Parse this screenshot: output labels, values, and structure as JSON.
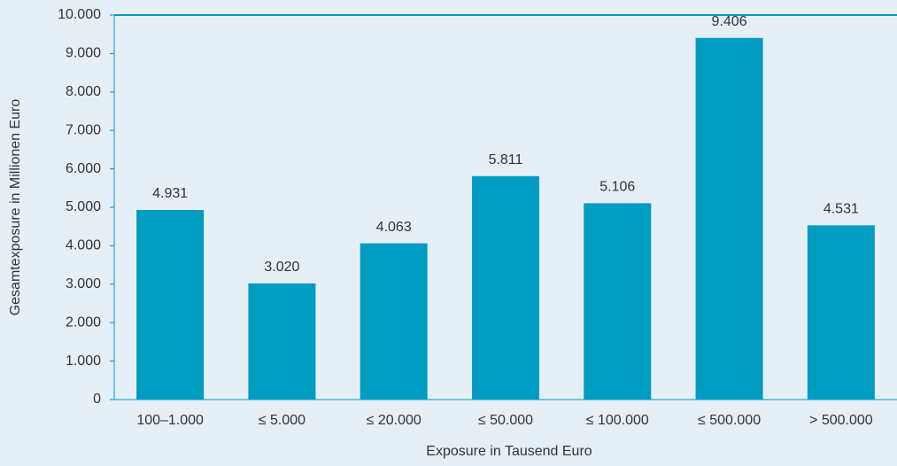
{
  "chart_data": {
    "type": "bar",
    "xlabel": "Exposure in Tausend Euro",
    "ylabel": "Gesamtexposure in Millionen Euro",
    "categories": [
      "100–1.000",
      "≤ 5.000",
      "≤ 20.000",
      "≤ 50.000",
      "≤ 100.000",
      "≤ 500.000",
      "> 500.000"
    ],
    "values": [
      4931,
      3020,
      4063,
      5811,
      5106,
      9406,
      4531
    ],
    "value_labels": [
      "4.931",
      "3.020",
      "4.063",
      "5.811",
      "5.106",
      "9.406",
      "4.531"
    ],
    "color": "#009cc1",
    "ylim": [
      0,
      10000
    ],
    "yticks": [
      0,
      {
        "value": 1000,
        "label": "1.000"
      },
      {
        "value": 2000,
        "label": "2.000"
      },
      {
        "value": 3000,
        "label": "3.000"
      },
      {
        "value": 4000,
        "label": "4.000"
      },
      {
        "value": 5000,
        "label": "5.000"
      },
      {
        "value": 6000,
        "label": "6.000"
      },
      {
        "value": 7000,
        "label": "7.000"
      },
      {
        "value": 8000,
        "label": "8.000"
      },
      {
        "value": 9000,
        "label": "9.000"
      },
      {
        "value": 10000,
        "label": "10.000"
      }
    ]
  }
}
